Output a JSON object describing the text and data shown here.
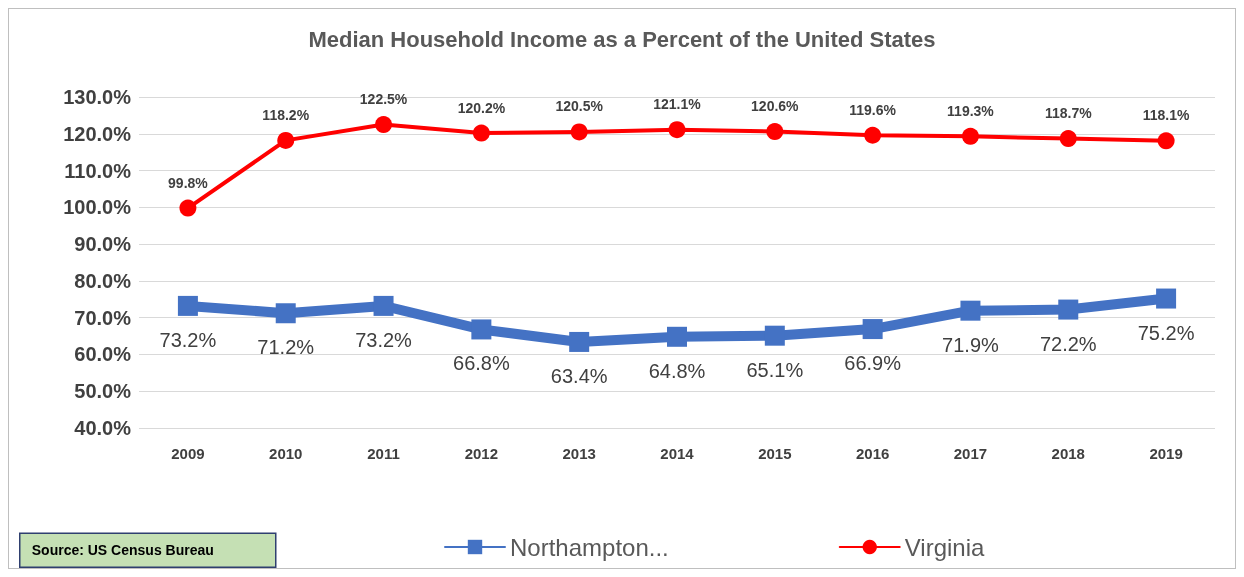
{
  "chart_data": {
    "type": "line",
    "title": "Median Household Income as a Percent of the United States",
    "categories": [
      "2009",
      "2010",
      "2011",
      "2012",
      "2013",
      "2014",
      "2015",
      "2016",
      "2017",
      "2018",
      "2019"
    ],
    "series": [
      {
        "name": "Northampton...",
        "color": "#4472c4",
        "marker": "square",
        "values": [
          73.2,
          71.2,
          73.2,
          66.8,
          63.4,
          64.8,
          65.1,
          66.9,
          71.9,
          72.2,
          75.2
        ],
        "value_labels": [
          "73.2%",
          "71.2%",
          "73.2%",
          "66.8%",
          "63.4%",
          "64.8%",
          "65.1%",
          "66.9%",
          "71.9%",
          "72.2%",
          "75.2%"
        ]
      },
      {
        "name": "Virginia",
        "color": "#ff0000",
        "marker": "circle",
        "values": [
          99.8,
          118.2,
          122.5,
          120.2,
          120.5,
          121.1,
          120.6,
          119.6,
          119.3,
          118.7,
          118.1
        ],
        "value_labels": [
          "99.8%",
          "118.2%",
          "122.5%",
          "120.2%",
          "120.5%",
          "121.1%",
          "120.6%",
          "119.6%",
          "119.3%",
          "118.7%",
          "118.1%"
        ]
      }
    ],
    "ylim": [
      40,
      130
    ],
    "yticks": [
      {
        "value": 40,
        "label": "40.0%"
      },
      {
        "value": 50,
        "label": "50.0%"
      },
      {
        "value": 60,
        "label": "60.0%"
      },
      {
        "value": 70,
        "label": "70.0%"
      },
      {
        "value": 80,
        "label": "80.0%"
      },
      {
        "value": 90,
        "label": "90.0%"
      },
      {
        "value": 100,
        "label": "100.0%"
      },
      {
        "value": 110,
        "label": "110.0%"
      },
      {
        "value": 120,
        "label": "120.0%"
      },
      {
        "value": 130,
        "label": "130.0%"
      }
    ],
    "grid": "y",
    "legend": "bottom",
    "annotations": [
      "Source: US Census Bureau"
    ]
  }
}
